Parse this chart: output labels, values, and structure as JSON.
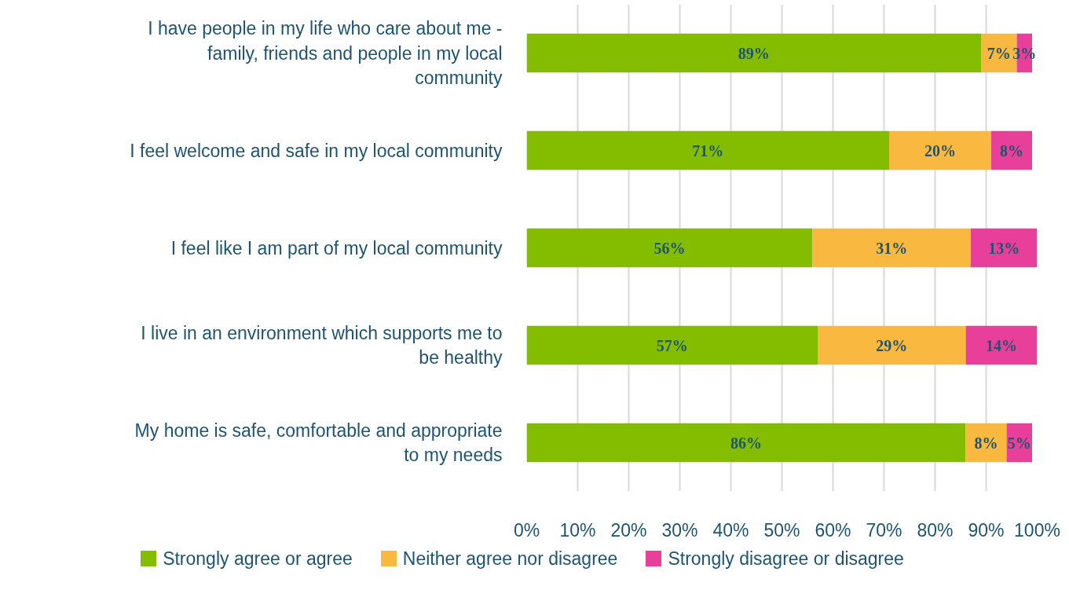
{
  "chart_data": {
    "type": "bar",
    "orientation": "horizontal",
    "stacked": true,
    "categories": [
      "I have people in my life who care about me - family, friends and people in my local community",
      "I feel welcome and safe in my local community",
      "I feel like I am part of my local community",
      "I live in an environment which supports me to be healthy",
      "My home is safe, comfortable and appropriate to my needs"
    ],
    "series": [
      {
        "name": "Strongly agree or agree",
        "color": "#84bd00",
        "values": [
          89,
          71,
          56,
          57,
          86
        ],
        "value_labels": [
          "89%",
          "71%",
          "56%",
          "57%",
          "86%"
        ]
      },
      {
        "name": "Neither agree nor disagree",
        "color": "#f9b83f",
        "values": [
          7,
          20,
          31,
          29,
          8
        ],
        "value_labels": [
          "7%",
          "20%",
          "31%",
          "29%",
          "8%"
        ]
      },
      {
        "name": "Strongly disagree or disagree",
        "color": "#e8409a",
        "values": [
          3,
          8,
          13,
          14,
          5
        ],
        "value_labels": [
          "3%",
          "8%",
          "13%",
          "14%",
          "5%"
        ]
      }
    ],
    "xlim": [
      0,
      100
    ],
    "xticks": [
      {
        "value": 0,
        "label": "0%"
      },
      {
        "value": 10,
        "label": "10%"
      },
      {
        "value": 20,
        "label": "20%"
      },
      {
        "value": 30,
        "label": "30%"
      },
      {
        "value": 40,
        "label": "40%"
      },
      {
        "value": 50,
        "label": "50%"
      },
      {
        "value": 60,
        "label": "60%"
      },
      {
        "value": 70,
        "label": "70%"
      },
      {
        "value": 80,
        "label": "80%"
      },
      {
        "value": 90,
        "label": "90%"
      },
      {
        "value": 100,
        "label": "100%"
      }
    ],
    "grid": "x",
    "legend": "bottom"
  }
}
